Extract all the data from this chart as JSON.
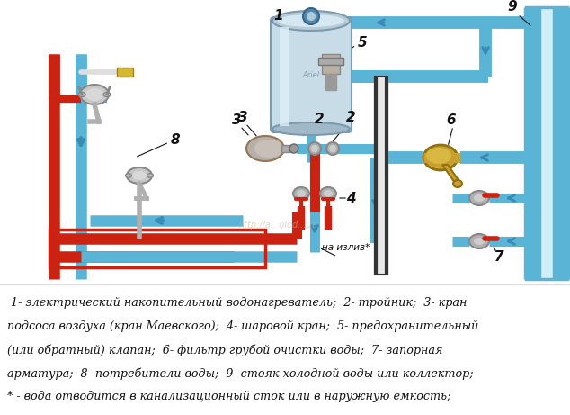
{
  "bg_color": "#ffffff",
  "diagram_bg": "#ffffff",
  "blue": "#5ab4d6",
  "blue_dark": "#3a8ab8",
  "blue_arrow": "#4499cc",
  "red": "#cc2211",
  "gray": "#b0b0b0",
  "gray_dark": "#888888",
  "brass": "#c8a030",
  "black": "#111111",
  "watermark": "#c8b890",
  "legend_lines": [
    " 1- электрический накопительный водонагреватель;  2- тройник;  3- кран",
    "подсоса воздуха (кран Маевского);  4- шаровой кран;  5- предохранительный",
    "(или обратный) клапан;  6- фильтр грубой очистки воды;  7- запорная",
    "арматура;  8- потребители воды;  9- стояк холодной воды или коллектор;",
    "* - вода отводится в канализационный сток или в наружную емкость;"
  ],
  "font_size_legend": 9.2
}
